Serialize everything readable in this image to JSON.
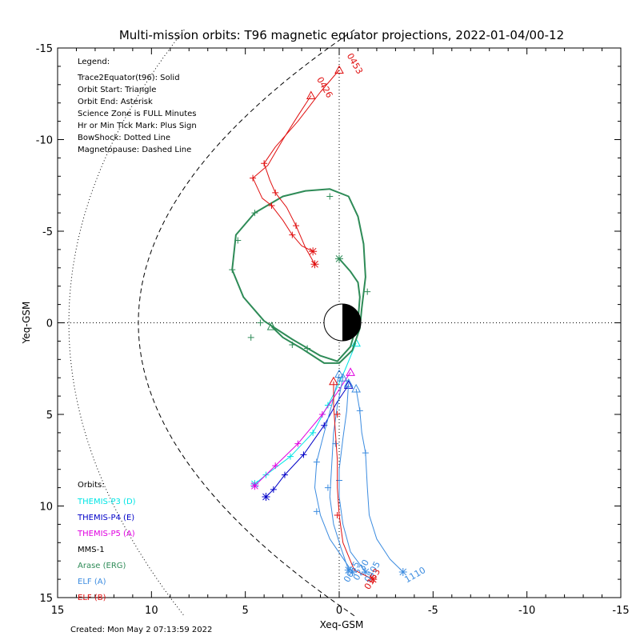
{
  "chart_data": {
    "type": "line",
    "title": "Multi-mission orbits: T96 magnetic equator projections, 2022-01-04/00-12",
    "xlabel": "Xeq-GSM",
    "ylabel": "Yeq-GSM",
    "xlim": [
      15,
      -15
    ],
    "ylim": [
      -15,
      15
    ],
    "x_ticks": [
      15,
      10,
      5,
      0,
      -5,
      -10,
      -15
    ],
    "y_ticks": [
      -15,
      -10,
      -5,
      0,
      5,
      10,
      15
    ],
    "legend_position": "top-left",
    "legend": {
      "heading": "Legend:",
      "lines": [
        "Trace2Equator(t96): Solid",
        "Orbit Start: Triangle",
        "Orbit End: Asterisk",
        "Science Zone is FULL Minutes",
        "Hr or Min Tick Mark: Plus Sign",
        "BowShock: Dotted Line",
        "Magnetopause: Dashed Line"
      ]
    },
    "orbits_heading": "Orbits:",
    "orbit_labels": [
      {
        "text": "THEMIS-P3 (D)",
        "color": "#00e5e5"
      },
      {
        "text": "THEMIS-P4 (E)",
        "color": "#0000c8"
      },
      {
        "text": "THEMIS-P5 (A)",
        "color": "#e000e0"
      },
      {
        "text": "MMS-1",
        "color": "#000000"
      },
      {
        "text": "Arase (ERG)",
        "color": "#2e8b57"
      },
      {
        "text": "ELF (A)",
        "color": "#3c8ce0"
      },
      {
        "text": "ELF (B)",
        "color": "#e01010"
      }
    ],
    "created": "Created: Mon May  2 07:13:59 2022",
    "series": [
      {
        "name": "THEMIS-P3 (D)",
        "color": "#00e5e5",
        "points": [
          [
            4.5,
            8.8
          ],
          [
            3.9,
            8.3
          ],
          [
            2.6,
            7.3
          ],
          [
            1.4,
            6.0
          ],
          [
            0.6,
            4.5
          ],
          [
            0.1,
            3.5
          ],
          [
            -0.3,
            2.6
          ],
          [
            -0.9,
            1.1
          ]
        ],
        "start": [
          -0.9,
          1.1
        ],
        "end": [
          4.5,
          8.8
        ],
        "ticks": [
          [
            3.9,
            8.3
          ],
          [
            2.6,
            7.3
          ],
          [
            1.4,
            6.0
          ],
          [
            0.6,
            4.5
          ]
        ]
      },
      {
        "name": "THEMIS-P4 (E)",
        "color": "#0000c8",
        "points": [
          [
            3.9,
            9.5
          ],
          [
            3.5,
            9.1
          ],
          [
            2.9,
            8.3
          ],
          [
            1.9,
            7.2
          ],
          [
            0.8,
            5.6
          ],
          [
            0.1,
            4.3
          ],
          [
            -0.5,
            3.4
          ]
        ],
        "start": [
          -0.5,
          3.4
        ],
        "end": [
          3.9,
          9.5
        ],
        "ticks": [
          [
            3.5,
            9.1
          ],
          [
            2.9,
            8.3
          ],
          [
            1.9,
            7.2
          ],
          [
            0.8,
            5.6
          ]
        ]
      },
      {
        "name": "THEMIS-P5 (A)",
        "color": "#e000e0",
        "points": [
          [
            4.5,
            8.9
          ],
          [
            3.4,
            7.8
          ],
          [
            2.2,
            6.6
          ],
          [
            0.9,
            5.0
          ],
          [
            0.1,
            3.8
          ],
          [
            -0.6,
            2.7
          ]
        ],
        "start": [
          -0.6,
          2.7
        ],
        "end": [
          4.5,
          8.9
        ],
        "ticks": [
          [
            3.4,
            7.8
          ],
          [
            2.2,
            6.6
          ],
          [
            0.9,
            5.0
          ]
        ]
      },
      {
        "name": "Arase (ERG)",
        "color": "#2e8b57",
        "points": [
          [
            3.6,
            0.2
          ],
          [
            3.0,
            0.8
          ],
          [
            2.0,
            1.4
          ],
          [
            0.8,
            2.2
          ],
          [
            0.0,
            2.2
          ],
          [
            -0.7,
            1.5
          ],
          [
            -1.1,
            0.3
          ],
          [
            -1.2,
            -0.8
          ],
          [
            -1.4,
            -2.5
          ],
          [
            -1.3,
            -4.3
          ],
          [
            -1.0,
            -5.8
          ],
          [
            -0.5,
            -6.9
          ],
          [
            0.5,
            -7.3
          ],
          [
            1.8,
            -7.2
          ],
          [
            3.0,
            -6.9
          ],
          [
            4.5,
            -6.0
          ],
          [
            5.5,
            -4.8
          ],
          [
            5.7,
            -2.9
          ],
          [
            5.1,
            -1.4
          ],
          [
            4.0,
            -0.1
          ],
          [
            2.5,
            0.9
          ],
          [
            1.0,
            1.8
          ],
          [
            0.1,
            2.1
          ],
          [
            -0.6,
            1.3
          ],
          [
            -1.0,
            -0.1
          ],
          [
            -1.1,
            -1.4
          ],
          [
            -1.0,
            -2.2
          ],
          [
            -0.6,
            -2.8
          ],
          [
            0.0,
            -3.5
          ]
        ],
        "start": [
          3.6,
          0.2
        ],
        "end": [
          0.0,
          -3.5
        ],
        "ticks": [
          [
            4.2,
            0.0
          ],
          [
            2.5,
            1.2
          ],
          [
            1.7,
            1.4
          ],
          [
            5.7,
            -2.9
          ],
          [
            5.4,
            -4.5
          ],
          [
            4.5,
            -6.0
          ],
          [
            0.5,
            -6.9
          ],
          [
            -1.5,
            -1.7
          ],
          [
            4.7,
            0.8
          ]
        ]
      },
      {
        "name": "ELF (A) 0055",
        "color": "#3c8ce0",
        "points": [
          [
            0.0,
            2.8
          ],
          [
            0.4,
            4.5
          ],
          [
            0.8,
            6.0
          ],
          [
            1.2,
            7.6
          ],
          [
            1.3,
            9.0
          ],
          [
            1.0,
            10.5
          ],
          [
            0.5,
            11.8
          ],
          [
            -0.3,
            13.0
          ],
          [
            -0.7,
            13.6
          ]
        ],
        "start": [
          0.0,
          2.8
        ],
        "end": [
          -0.7,
          13.6
        ],
        "ticks": [
          [
            1.2,
            7.6
          ],
          [
            1.2,
            10.3
          ]
        ]
      },
      {
        "name": "ELF (A) 0230",
        "color": "#3c8ce0",
        "points": [
          [
            -0.2,
            3.0
          ],
          [
            0.1,
            4.5
          ],
          [
            0.3,
            6.0
          ],
          [
            0.4,
            7.8
          ],
          [
            0.5,
            9.5
          ],
          [
            0.3,
            11.0
          ],
          [
            -0.1,
            12.3
          ],
          [
            -0.5,
            13.5
          ]
        ],
        "start": [
          -0.2,
          3.0
        ],
        "end": [
          -0.5,
          13.5
        ],
        "ticks": [
          [
            0.2,
            6.6
          ],
          [
            0.6,
            9.0
          ]
        ]
      },
      {
        "name": "ELF (A) 0405",
        "color": "#3c8ce0",
        "points": [
          [
            -0.5,
            3.3
          ],
          [
            -0.4,
            4.8
          ],
          [
            -0.2,
            6.3
          ],
          [
            0.0,
            8.0
          ],
          [
            0.0,
            9.5
          ],
          [
            -0.2,
            11.0
          ],
          [
            -0.6,
            12.5
          ],
          [
            -1.4,
            13.6
          ]
        ],
        "start": [
          -0.5,
          3.3
        ],
        "end": [
          -1.4,
          13.6
        ],
        "ticks": [
          [
            0.0,
            8.6
          ]
        ]
      },
      {
        "name": "ELF (A) 1110",
        "color": "#3c8ce0",
        "points": [
          [
            -0.9,
            3.6
          ],
          [
            -1.1,
            4.8
          ],
          [
            -1.2,
            6.0
          ],
          [
            -1.4,
            7.1
          ],
          [
            -1.5,
            9.0
          ],
          [
            -1.6,
            10.5
          ],
          [
            -2.0,
            11.8
          ],
          [
            -2.7,
            12.9
          ],
          [
            -3.4,
            13.6
          ]
        ],
        "start": [
          -0.9,
          3.6
        ],
        "end": [
          -3.4,
          13.6
        ],
        "ticks": [
          [
            -1.1,
            4.8
          ],
          [
            -1.4,
            7.1
          ]
        ]
      },
      {
        "name": "ELF (B) 0426",
        "color": "#e01010",
        "points": [
          [
            1.5,
            -12.4
          ],
          [
            2.2,
            -11.3
          ],
          [
            3.0,
            -10.0
          ],
          [
            3.8,
            -8.6
          ],
          [
            4.6,
            -7.9
          ],
          [
            4.1,
            -6.8
          ],
          [
            3.6,
            -6.4
          ],
          [
            3.0,
            -5.6
          ],
          [
            2.5,
            -4.8
          ],
          [
            2.0,
            -4.2
          ],
          [
            1.4,
            -3.9
          ]
        ],
        "start": [
          1.5,
          -12.4
        ],
        "end": [
          1.4,
          -3.9
        ],
        "ticks": [
          [
            4.6,
            -7.9
          ],
          [
            3.6,
            -6.4
          ],
          [
            2.5,
            -4.8
          ]
        ]
      },
      {
        "name": "ELF (B) 0453",
        "color": "#e01010",
        "points": [
          [
            0.0,
            -13.8
          ],
          [
            1.0,
            -12.6
          ],
          [
            2.2,
            -11.0
          ],
          [
            3.4,
            -9.6
          ],
          [
            4.0,
            -8.7
          ],
          [
            3.7,
            -7.8
          ],
          [
            3.4,
            -7.1
          ],
          [
            2.8,
            -6.3
          ],
          [
            2.3,
            -5.3
          ],
          [
            1.8,
            -4.1
          ],
          [
            1.3,
            -3.2
          ]
        ],
        "start": [
          0.0,
          -13.8
        ],
        "end": [
          1.3,
          -3.2
        ],
        "ticks": [
          [
            4.0,
            -8.7
          ],
          [
            3.4,
            -7.1
          ],
          [
            2.3,
            -5.3
          ]
        ]
      },
      {
        "name": "ELF (B) 0153",
        "color": "#e01010",
        "points": [
          [
            0.3,
            3.2
          ],
          [
            0.3,
            4.5
          ],
          [
            0.2,
            6.0
          ],
          [
            0.1,
            7.5
          ],
          [
            0.1,
            9.0
          ],
          [
            0.0,
            10.5
          ],
          [
            -0.2,
            12.0
          ],
          [
            -0.8,
            13.5
          ],
          [
            -1.8,
            14.0
          ]
        ],
        "start": [
          0.3,
          3.2
        ],
        "end": [
          -1.8,
          14.0
        ],
        "ticks": [
          [
            0.1,
            10.5
          ],
          [
            0.1,
            5.0
          ]
        ]
      }
    ],
    "end_labels": [
      {
        "text": "0453",
        "x": -0.4,
        "y": -14.6,
        "rotate": 60,
        "color": "#e01010"
      },
      {
        "text": "0426",
        "x": 1.2,
        "y": -13.3,
        "rotate": 60,
        "color": "#e01010"
      },
      {
        "text": "0055",
        "x": -0.5,
        "y": 14.2,
        "rotate": -60,
        "color": "#3c8ce0"
      },
      {
        "text": "0230",
        "x": -1.0,
        "y": 14.1,
        "rotate": -60,
        "color": "#3c8ce0"
      },
      {
        "text": "0405",
        "x": -1.6,
        "y": 14.2,
        "rotate": -60,
        "color": "#3c8ce0"
      },
      {
        "text": "0153",
        "x": -1.6,
        "y": 14.6,
        "rotate": -60,
        "color": "#e01010"
      },
      {
        "text": "1110",
        "x": -3.6,
        "y": 14.2,
        "rotate": -30,
        "color": "#3c8ce0"
      }
    ]
  }
}
